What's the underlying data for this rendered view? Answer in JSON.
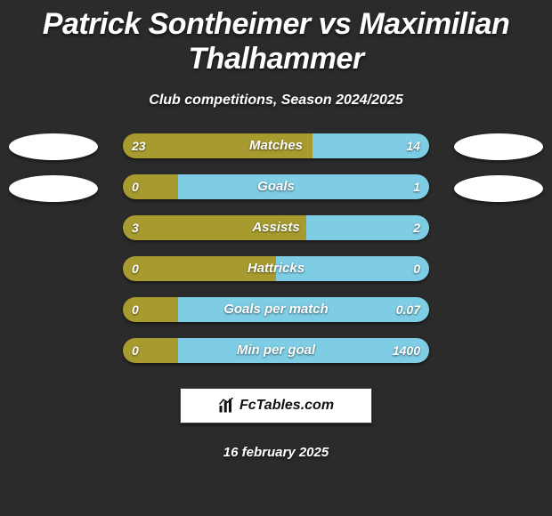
{
  "title": "Patrick Sontheimer vs Maximilian Thalhammer",
  "subtitle": "Club competitions, Season 2024/2025",
  "date": "16 february 2025",
  "badge_text": "FcTables.com",
  "colors": {
    "left": "#a79b2f",
    "right": "#7ecde4",
    "background": "#2b2b2b",
    "text": "#ffffff"
  },
  "rows": [
    {
      "label": "Matches",
      "left_val": "23",
      "right_val": "14",
      "left_pct": 62,
      "right_pct": 38
    },
    {
      "label": "Goals",
      "left_val": "0",
      "right_val": "1",
      "left_pct": 18,
      "right_pct": 82
    },
    {
      "label": "Assists",
      "left_val": "3",
      "right_val": "2",
      "left_pct": 60,
      "right_pct": 40
    },
    {
      "label": "Hattricks",
      "left_val": "0",
      "right_val": "0",
      "left_pct": 50,
      "right_pct": 50
    },
    {
      "label": "Goals per match",
      "left_val": "0",
      "right_val": "0.07",
      "left_pct": 18,
      "right_pct": 82
    },
    {
      "label": "Min per goal",
      "left_val": "0",
      "right_val": "1400",
      "left_pct": 18,
      "right_pct": 82
    }
  ]
}
